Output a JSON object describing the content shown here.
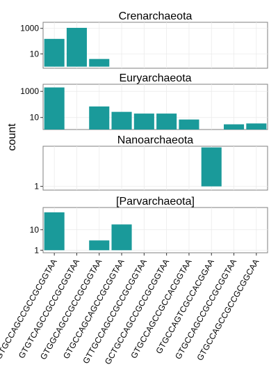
{
  "chart_data": {
    "type": "bar",
    "ylabel": "count",
    "bar_color": "#1a9a9a",
    "y_scale": "log10",
    "categories": [
      "GTGCCAGCCGCCGCGGTAA",
      "GTGTCAGCCGCCGCGGTAA",
      "GTGGCAGCCGCCGCGGTAA",
      "GTGCCAGCAGCCGCGGTAA",
      "GTTGCCAGCCGCCGCGGTAA",
      "GCTGCCAGCCGCCGCGGTAA",
      "GTGCCAGCCGCCACGGTAA",
      "GTGCCAGTCGCCACGGAA",
      "GTGCCAGCCGCCGCGGTAA",
      "GTGCCAGCCGCCGCGGCAA"
    ],
    "facets": [
      {
        "title": "Crenarchaeota",
        "ylim": [
          0.75,
          3000
        ],
        "yticks": [
          10,
          1000
        ],
        "ytick_labels": [
          "10",
          "1000"
        ],
        "values": [
          150,
          1100,
          4,
          null,
          null,
          null,
          null,
          null,
          null,
          null
        ]
      },
      {
        "title": "Euryarchaeota",
        "ylim": [
          1.2,
          3500
        ],
        "yticks": [
          10,
          1000
        ],
        "ytick_labels": [
          "10",
          "1000"
        ],
        "values": [
          2000,
          null,
          70,
          27,
          20,
          20,
          7,
          null,
          3,
          3.5
        ]
      },
      {
        "title": "Nanoarchaeota",
        "ylim": [
          0.9,
          3.1
        ],
        "yticks": [
          1
        ],
        "ytick_labels": [
          "1"
        ],
        "values": [
          null,
          null,
          null,
          null,
          null,
          null,
          null,
          3,
          null,
          null
        ]
      },
      {
        "title": "[Parvarchaeota]",
        "ylim": [
          0.75,
          120
        ],
        "yticks": [
          1,
          10
        ],
        "ytick_labels": [
          "1",
          "10"
        ],
        "values": [
          70,
          null,
          3,
          18,
          null,
          null,
          null,
          null,
          null,
          null
        ]
      }
    ]
  }
}
